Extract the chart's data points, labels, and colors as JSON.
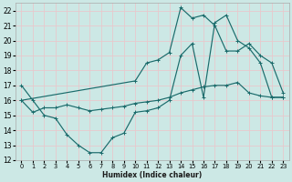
{
  "xlabel": "Humidex (Indice chaleur)",
  "bg_color": "#cce8e5",
  "grid_color": "#b8d8d5",
  "line_color": "#1a6b6b",
  "xlim": [
    -0.5,
    23.5
  ],
  "ylim": [
    12,
    22.5
  ],
  "yticks": [
    12,
    13,
    14,
    15,
    16,
    17,
    18,
    19,
    20,
    21,
    22
  ],
  "xticks": [
    0,
    1,
    2,
    3,
    4,
    5,
    6,
    7,
    8,
    9,
    10,
    11,
    12,
    13,
    14,
    15,
    16,
    17,
    18,
    19,
    20,
    21,
    22,
    23
  ],
  "series": [
    {
      "x": [
        0,
        1,
        2,
        3,
        4,
        5,
        6,
        7,
        8,
        9,
        10,
        11,
        12,
        13,
        14,
        15,
        16,
        17,
        18,
        19,
        20,
        21,
        22,
        23
      ],
      "y": [
        17,
        16,
        15,
        14.8,
        13.7,
        13.0,
        12.5,
        12.5,
        13.5,
        13.8,
        15.2,
        15.3,
        15.5,
        16.0,
        19.0,
        19.8,
        16.2,
        21.2,
        21.7,
        20.0,
        19.5,
        18.5,
        16.2,
        16.2
      ]
    },
    {
      "x": [
        0,
        1,
        2,
        3,
        4,
        5,
        6,
        7,
        8,
        9,
        10,
        11,
        12,
        13,
        14,
        15,
        16,
        17,
        18,
        19,
        20,
        21,
        22,
        23
      ],
      "y": [
        16.0,
        15.2,
        15.5,
        15.5,
        15.7,
        15.5,
        15.3,
        15.4,
        15.5,
        15.6,
        15.8,
        15.9,
        16.0,
        16.2,
        16.5,
        16.7,
        16.9,
        17.0,
        17.0,
        17.2,
        16.5,
        16.3,
        16.2,
        16.2
      ]
    },
    {
      "x": [
        0,
        10,
        11,
        12,
        13,
        14,
        15,
        16,
        17,
        18,
        19,
        20,
        21,
        22,
        23
      ],
      "y": [
        16.0,
        17.3,
        18.5,
        18.7,
        19.2,
        22.2,
        21.5,
        21.7,
        21.0,
        19.3,
        19.3,
        19.8,
        19.0,
        18.5,
        16.5
      ]
    }
  ]
}
